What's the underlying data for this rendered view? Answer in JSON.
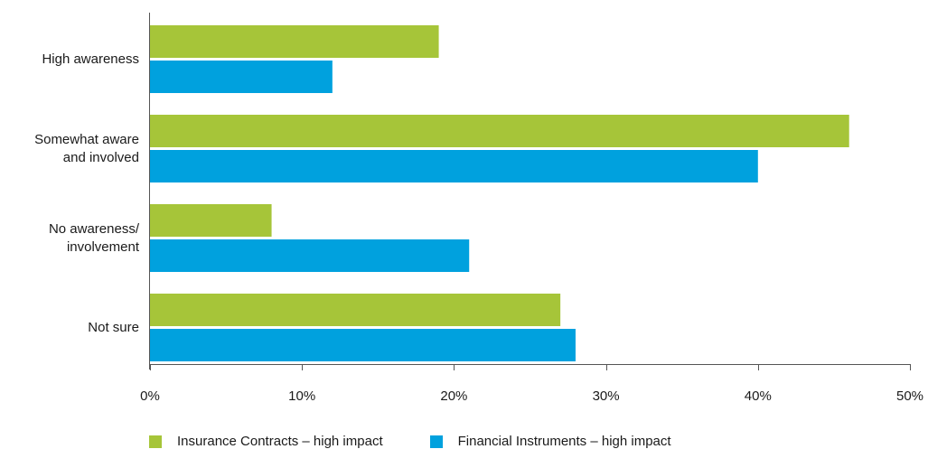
{
  "chart_data": {
    "type": "bar",
    "orientation": "horizontal",
    "categories": [
      [
        "High awareness"
      ],
      [
        "Somewhat aware",
        "and involved"
      ],
      [
        "No awareness/",
        "involvement"
      ],
      [
        "Not sure"
      ]
    ],
    "series": [
      {
        "name": "Insurance Contracts – high impact",
        "color": "#a6c539",
        "values": [
          19,
          46,
          8,
          27
        ]
      },
      {
        "name": "Financial Instruments – high impact",
        "color": "#00a1de",
        "values": [
          12,
          40,
          21,
          28
        ]
      }
    ],
    "xlim": [
      0,
      50
    ],
    "xticks": [
      "0%",
      "10%",
      "20%",
      "30%",
      "40%",
      "50%"
    ],
    "xtick_values": [
      0,
      10,
      20,
      30,
      40,
      50
    ],
    "grid": false,
    "legend_position": "bottom"
  }
}
